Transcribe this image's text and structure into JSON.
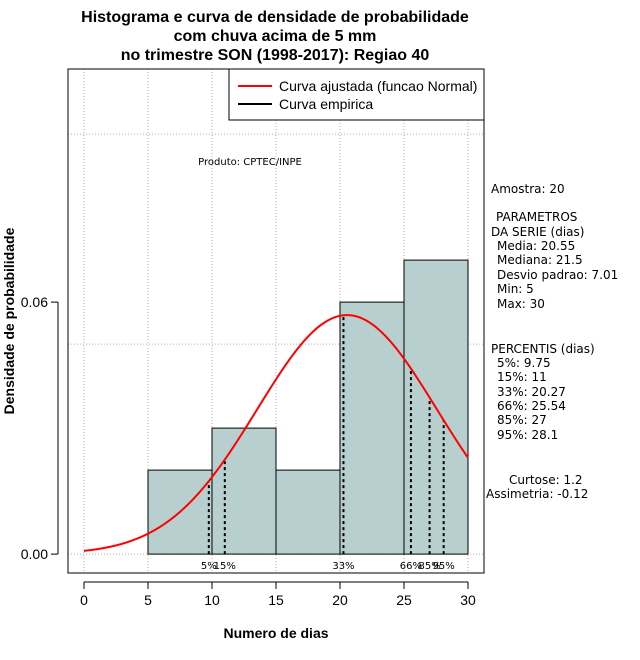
{
  "chart_data": {
    "type": "histogram",
    "title_lines": [
      "Histograma e curva de densidade de probabilidade",
      "com chuva acima de 5 mm",
      "no trimestre SON (1998-2017): Regiao 40"
    ],
    "xlabel": "Numero de dias",
    "ylabel": "Densidade de probabilidade",
    "xlim": [
      -1.25,
      31.25
    ],
    "ylim": [
      -0.0045,
      0.1155
    ],
    "x_ticks": [
      0,
      5,
      10,
      15,
      20,
      25,
      30
    ],
    "y_ticks": [
      0.0,
      0.06
    ],
    "y_tick_labels": [
      "0.00",
      "0.06"
    ],
    "grid": true,
    "bins": [
      {
        "from": 5,
        "to": 10,
        "density": 0.02
      },
      {
        "from": 10,
        "to": 15,
        "density": 0.03
      },
      {
        "from": 15,
        "to": 20,
        "density": 0.02
      },
      {
        "from": 20,
        "to": 25,
        "density": 0.06
      },
      {
        "from": 25,
        "to": 30,
        "density": 0.07
      }
    ],
    "bar_color": "#b8cfcf",
    "normal_curve": {
      "mean": 20.55,
      "sd": 7.01,
      "x_range": [
        0,
        30
      ],
      "color": "#ff0000"
    },
    "percentiles": [
      {
        "label": "5%",
        "value": 9.75
      },
      {
        "label": "15%",
        "value": 11
      },
      {
        "label": "33%",
        "value": 20.27
      },
      {
        "label": "66%",
        "value": 25.54
      },
      {
        "label": "85%",
        "value": 27
      },
      {
        "label": "95%",
        "value": 28.1
      }
    ],
    "legend": {
      "position": "top-right",
      "entries": [
        {
          "label": "Curva ajustada (funcao Normal)",
          "color": "#ff0000"
        },
        {
          "label": "Curva empirica",
          "color": "#000000"
        }
      ]
    },
    "annotations": {
      "produto": "Produto: CPTEC/INPE",
      "amostra": "Amostra: 20",
      "param_lines": [
        "PARAMETROS",
        "DA SERIE (dias)",
        "Media: 20.55",
        "Mediana: 21.5",
        "Desvio padrao: 7.01",
        "Min: 5",
        "Max: 30"
      ],
      "perc_lines": [
        "PERCENTIS (dias)",
        "5%: 9.75",
        "15%: 11",
        "33%: 20.27",
        "66%: 25.54",
        "85%: 27",
        "95%: 28.1"
      ],
      "curtose": "Curtose: 1.2",
      "assimetria": "Assimetria: -0.12"
    }
  }
}
